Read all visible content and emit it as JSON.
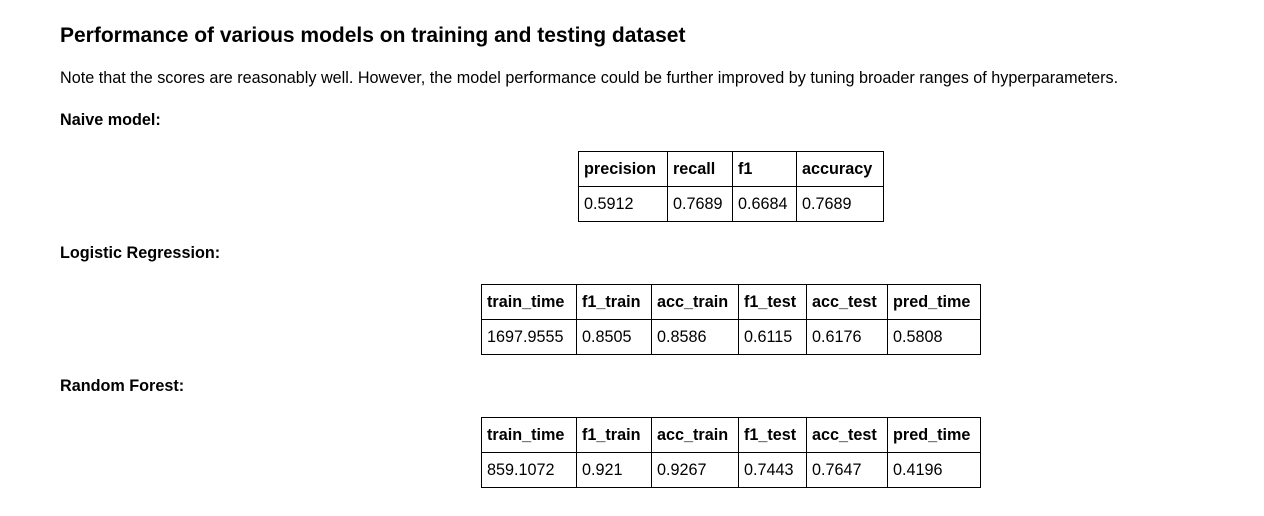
{
  "title": "Performance of various models on training and testing dataset",
  "note": "Note that the scores are reasonably well. However, the model performance could be further improved by tuning broader ranges of hyperparameters.",
  "sections": [
    {
      "label": "Naive model:",
      "table": {
        "headers": [
          "precision",
          "recall",
          "f1",
          "accuracy"
        ],
        "row": [
          "0.5912",
          "0.7689",
          "0.6684",
          "0.7689"
        ]
      }
    },
    {
      "label": "Logistic Regression:",
      "table": {
        "headers": [
          "train_time",
          "f1_train",
          "acc_train",
          "f1_test",
          "acc_test",
          "pred_time"
        ],
        "row": [
          "1697.9555",
          "0.8505",
          "0.8586",
          "0.6115",
          "0.6176",
          "0.5808"
        ]
      }
    },
    {
      "label": "Random Forest:",
      "table": {
        "headers": [
          "train_time",
          "f1_train",
          "acc_train",
          "f1_test",
          "acc_test",
          "pred_time"
        ],
        "row": [
          "859.1072",
          "0.921",
          "0.9267",
          "0.7443",
          "0.7647",
          "0.4196"
        ]
      }
    }
  ]
}
